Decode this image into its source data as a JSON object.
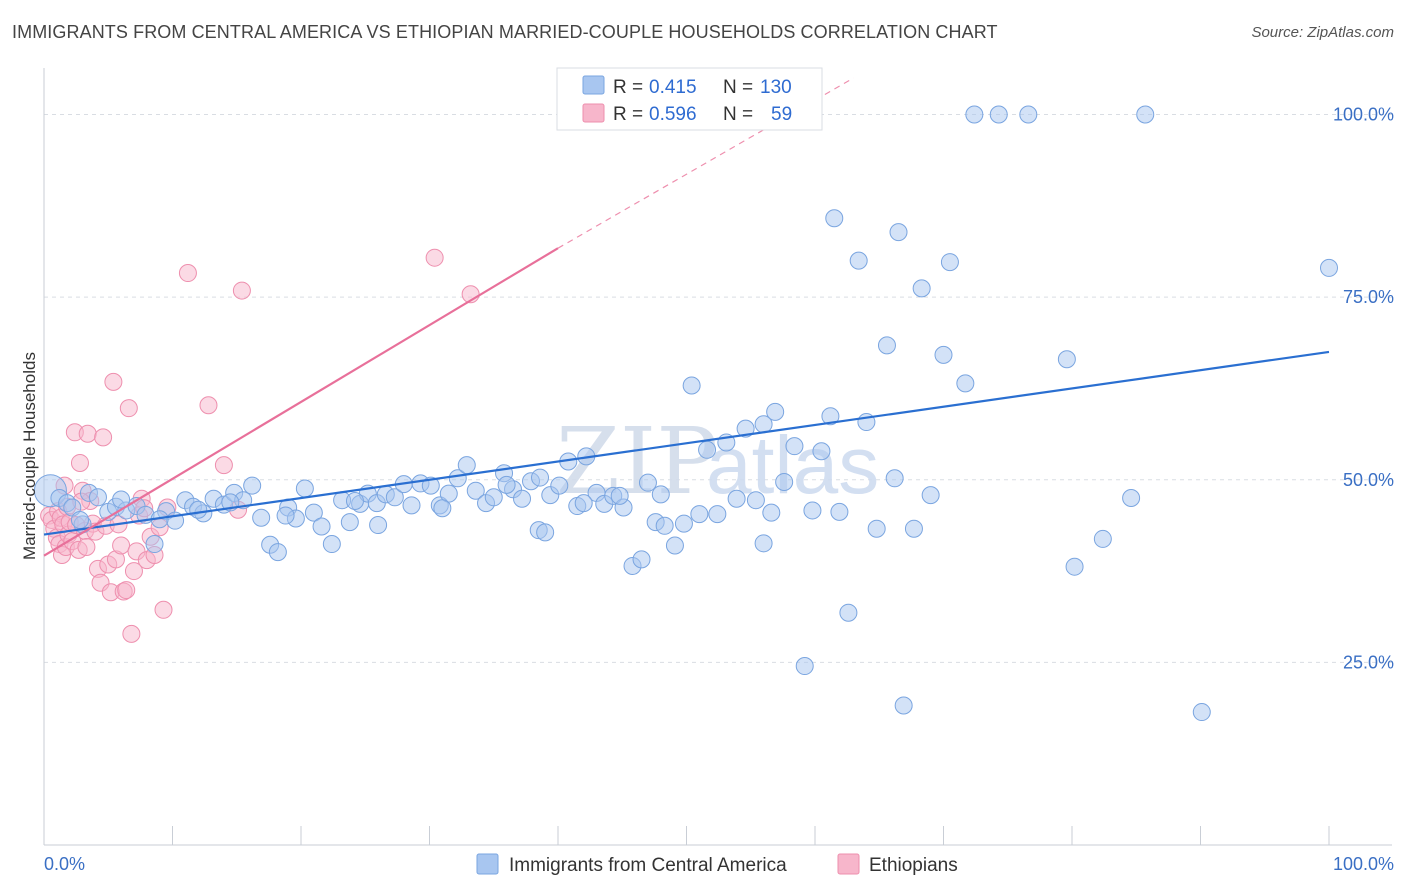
{
  "title": "IMMIGRANTS FROM CENTRAL AMERICA VS ETHIOPIAN MARRIED-COUPLE HOUSEHOLDS CORRELATION CHART",
  "source": "Source: ZipAtlas.com",
  "watermark": {
    "zip": "ZIP",
    "atlas": "atlas"
  },
  "legend": {
    "rows": [
      {
        "r_label": "R =",
        "r_value": "0.415",
        "n_label": "N =",
        "n_value": "130"
      },
      {
        "r_label": "R =",
        "r_value": "0.596",
        "n_label": "N =",
        "n_value": "59"
      }
    ]
  },
  "bottom_legend": [
    "Immigrants from Central America",
    "Ethiopians"
  ],
  "colors": {
    "blue_fill": "#a8c6f0",
    "blue_stroke": "#7aa5e0",
    "blue_line": "#2a6fd1",
    "pink_fill": "#f7b6cb",
    "pink_stroke": "#ee8fae",
    "pink_line": "#e8709a",
    "grid": "#d9dde3",
    "axis_text": "#3a6fc4"
  },
  "chart_data": {
    "type": "scatter",
    "title": "IMMIGRANTS FROM CENTRAL AMERICA VS ETHIOPIAN MARRIED-COUPLE HOUSEHOLDS CORRELATION CHART",
    "xlabel": "",
    "ylabel": "Married-couple Households",
    "xlim": [
      0,
      100
    ],
    "ylim": [
      0,
      105
    ],
    "x_tick_labels": [
      "0.0%",
      "100.0%"
    ],
    "y_ticks": [
      25,
      50,
      75,
      100
    ],
    "y_tick_labels": [
      "25.0%",
      "50.0%",
      "75.0%",
      "100.0%"
    ],
    "grid": true,
    "legend_placement": "top-center",
    "series": [
      {
        "name": "Immigrants from Central America",
        "color": "#a8c6f0",
        "trend": {
          "x": [
            0,
            100
          ],
          "y": [
            42.5,
            67.5
          ]
        },
        "points": [
          [
            0.5,
            48.5
          ],
          [
            1.2,
            47.5
          ],
          [
            1.8,
            46.8
          ],
          [
            2.2,
            46.2
          ],
          [
            3.5,
            48.2
          ],
          [
            4.2,
            47.6
          ],
          [
            5.0,
            45.6
          ],
          [
            5.6,
            46.3
          ],
          [
            6.4,
            45.8
          ],
          [
            7.2,
            46.4
          ],
          [
            7.9,
            45.2
          ],
          [
            8.6,
            41.2
          ],
          [
            9.5,
            45.7
          ],
          [
            10.2,
            44.4
          ],
          [
            11.0,
            47.2
          ],
          [
            11.6,
            46.3
          ],
          [
            12.4,
            45.4
          ],
          [
            13.2,
            47.4
          ],
          [
            14.0,
            46.6
          ],
          [
            14.8,
            48.2
          ],
          [
            15.5,
            47.2
          ],
          [
            16.2,
            49.2
          ],
          [
            16.9,
            44.8
          ],
          [
            17.6,
            41.1
          ],
          [
            18.2,
            40.1
          ],
          [
            19.0,
            46.2
          ],
          [
            19.6,
            44.7
          ],
          [
            20.3,
            48.8
          ],
          [
            21.0,
            45.5
          ],
          [
            21.6,
            43.6
          ],
          [
            22.4,
            41.2
          ],
          [
            23.2,
            47.2
          ],
          [
            23.8,
            44.2
          ],
          [
            24.6,
            46.7
          ],
          [
            25.2,
            48.1
          ],
          [
            25.9,
            46.8
          ],
          [
            26.6,
            48.0
          ],
          [
            27.3,
            47.6
          ],
          [
            28.0,
            49.4
          ],
          [
            28.6,
            46.5
          ],
          [
            29.3,
            49.5
          ],
          [
            30.1,
            49.2
          ],
          [
            30.8,
            46.5
          ],
          [
            31.5,
            48.1
          ],
          [
            32.2,
            50.2
          ],
          [
            32.9,
            52.0
          ],
          [
            33.6,
            48.5
          ],
          [
            34.4,
            46.8
          ],
          [
            35.0,
            47.6
          ],
          [
            35.8,
            50.9
          ],
          [
            36.5,
            48.7
          ],
          [
            37.2,
            47.4
          ],
          [
            37.9,
            49.8
          ],
          [
            38.6,
            50.3
          ],
          [
            39.4,
            47.9
          ],
          [
            40.1,
            49.2
          ],
          [
            40.8,
            52.5
          ],
          [
            41.5,
            46.4
          ],
          [
            42.2,
            53.2
          ],
          [
            43.0,
            48.2
          ],
          [
            43.6,
            46.7
          ],
          [
            44.3,
            47.8
          ],
          [
            45.1,
            46.2
          ],
          [
            45.8,
            38.2
          ],
          [
            46.5,
            39.1
          ],
          [
            47.0,
            49.6
          ],
          [
            47.6,
            44.2
          ],
          [
            48.3,
            43.7
          ],
          [
            49.1,
            41.0
          ],
          [
            49.8,
            44.0
          ],
          [
            50.4,
            62.9
          ],
          [
            51.0,
            45.3
          ],
          [
            51.6,
            54.1
          ],
          [
            52.4,
            45.3
          ],
          [
            53.1,
            55.1
          ],
          [
            53.9,
            47.4
          ],
          [
            54.6,
            57.0
          ],
          [
            55.4,
            47.2
          ],
          [
            56.0,
            41.3
          ],
          [
            56.6,
            45.5
          ],
          [
            56.0,
            57.6
          ],
          [
            56.9,
            59.3
          ],
          [
            57.6,
            49.7
          ],
          [
            58.4,
            54.6
          ],
          [
            59.2,
            24.5
          ],
          [
            59.8,
            45.8
          ],
          [
            60.5,
            53.9
          ],
          [
            61.2,
            58.7
          ],
          [
            61.9,
            45.6
          ],
          [
            62.6,
            31.8
          ],
          [
            63.4,
            80.0
          ],
          [
            64.0,
            57.9
          ],
          [
            64.8,
            43.3
          ],
          [
            65.6,
            68.4
          ],
          [
            66.2,
            50.2
          ],
          [
            66.9,
            19.1
          ],
          [
            67.7,
            43.3
          ],
          [
            68.3,
            76.2
          ],
          [
            69.0,
            47.9
          ],
          [
            70.0,
            67.1
          ],
          [
            70.5,
            79.8
          ],
          [
            71.7,
            63.2
          ],
          [
            72.4,
            100
          ],
          [
            74.3,
            100
          ],
          [
            76.6,
            100
          ],
          [
            79.6,
            66.5
          ],
          [
            80.2,
            38.1
          ],
          [
            82.4,
            41.9
          ],
          [
            84.6,
            47.5
          ],
          [
            85.7,
            100
          ],
          [
            90.1,
            18.2
          ],
          [
            100.0,
            79.0
          ],
          [
            61.5,
            85.8
          ],
          [
            66.5,
            83.9
          ],
          [
            48.0,
            48.0
          ],
          [
            38.5,
            43.1
          ],
          [
            26.0,
            43.8
          ],
          [
            9.0,
            44.6
          ],
          [
            3.0,
            43.9
          ],
          [
            6.0,
            47.3
          ],
          [
            2.8,
            44.5
          ],
          [
            12.0,
            45.9
          ],
          [
            14.5,
            46.9
          ],
          [
            18.8,
            45.1
          ],
          [
            24.2,
            47.1
          ],
          [
            31.0,
            46.1
          ],
          [
            36.0,
            49.3
          ],
          [
            39.0,
            42.8
          ],
          [
            42.0,
            46.8
          ],
          [
            44.8,
            47.8
          ]
        ]
      },
      {
        "name": "Ethiopians",
        "color": "#f7b6cb",
        "trend": {
          "x": [
            0,
            40
          ],
          "y": [
            39.6,
            81.7
          ]
        },
        "trend_ext": {
          "x": [
            40,
            63
          ],
          "y": [
            81.7,
            105.0
          ]
        },
        "points": [
          [
            0.4,
            45.1
          ],
          [
            0.6,
            44.5
          ],
          [
            0.8,
            43.3
          ],
          [
            1.0,
            42.1
          ],
          [
            1.1,
            45.7
          ],
          [
            1.2,
            41.2
          ],
          [
            1.3,
            44.8
          ],
          [
            1.4,
            39.7
          ],
          [
            1.5,
            43.9
          ],
          [
            1.7,
            40.8
          ],
          [
            1.8,
            46.3
          ],
          [
            1.9,
            42.5
          ],
          [
            2.0,
            44.2
          ],
          [
            2.2,
            41.6
          ],
          [
            2.4,
            56.5
          ],
          [
            2.5,
            43.8
          ],
          [
            2.7,
            40.4
          ],
          [
            2.8,
            52.3
          ],
          [
            3.0,
            48.5
          ],
          [
            3.2,
            43.0
          ],
          [
            3.4,
            56.3
          ],
          [
            3.6,
            47.1
          ],
          [
            3.8,
            44.0
          ],
          [
            4.0,
            42.9
          ],
          [
            4.2,
            37.8
          ],
          [
            4.4,
            35.9
          ],
          [
            4.6,
            55.8
          ],
          [
            4.8,
            43.7
          ],
          [
            5.0,
            38.4
          ],
          [
            5.2,
            34.6
          ],
          [
            5.4,
            63.4
          ],
          [
            5.6,
            39.1
          ],
          [
            5.8,
            43.9
          ],
          [
            6.0,
            41.0
          ],
          [
            6.2,
            34.7
          ],
          [
            6.4,
            34.9
          ],
          [
            6.6,
            59.8
          ],
          [
            6.8,
            28.9
          ],
          [
            7.0,
            37.5
          ],
          [
            7.2,
            40.2
          ],
          [
            7.4,
            45.1
          ],
          [
            7.6,
            47.4
          ],
          [
            7.8,
            46.1
          ],
          [
            8.0,
            39.0
          ],
          [
            8.3,
            42.2
          ],
          [
            8.6,
            39.7
          ],
          [
            9.0,
            43.5
          ],
          [
            9.3,
            32.2
          ],
          [
            9.6,
            46.2
          ],
          [
            11.2,
            78.3
          ],
          [
            12.8,
            60.2
          ],
          [
            14.0,
            52.0
          ],
          [
            15.1,
            45.9
          ],
          [
            15.4,
            75.9
          ],
          [
            30.4,
            80.4
          ],
          [
            33.2,
            75.4
          ],
          [
            1.6,
            49.2
          ],
          [
            2.9,
            47.0
          ],
          [
            3.3,
            40.8
          ]
        ]
      }
    ]
  }
}
